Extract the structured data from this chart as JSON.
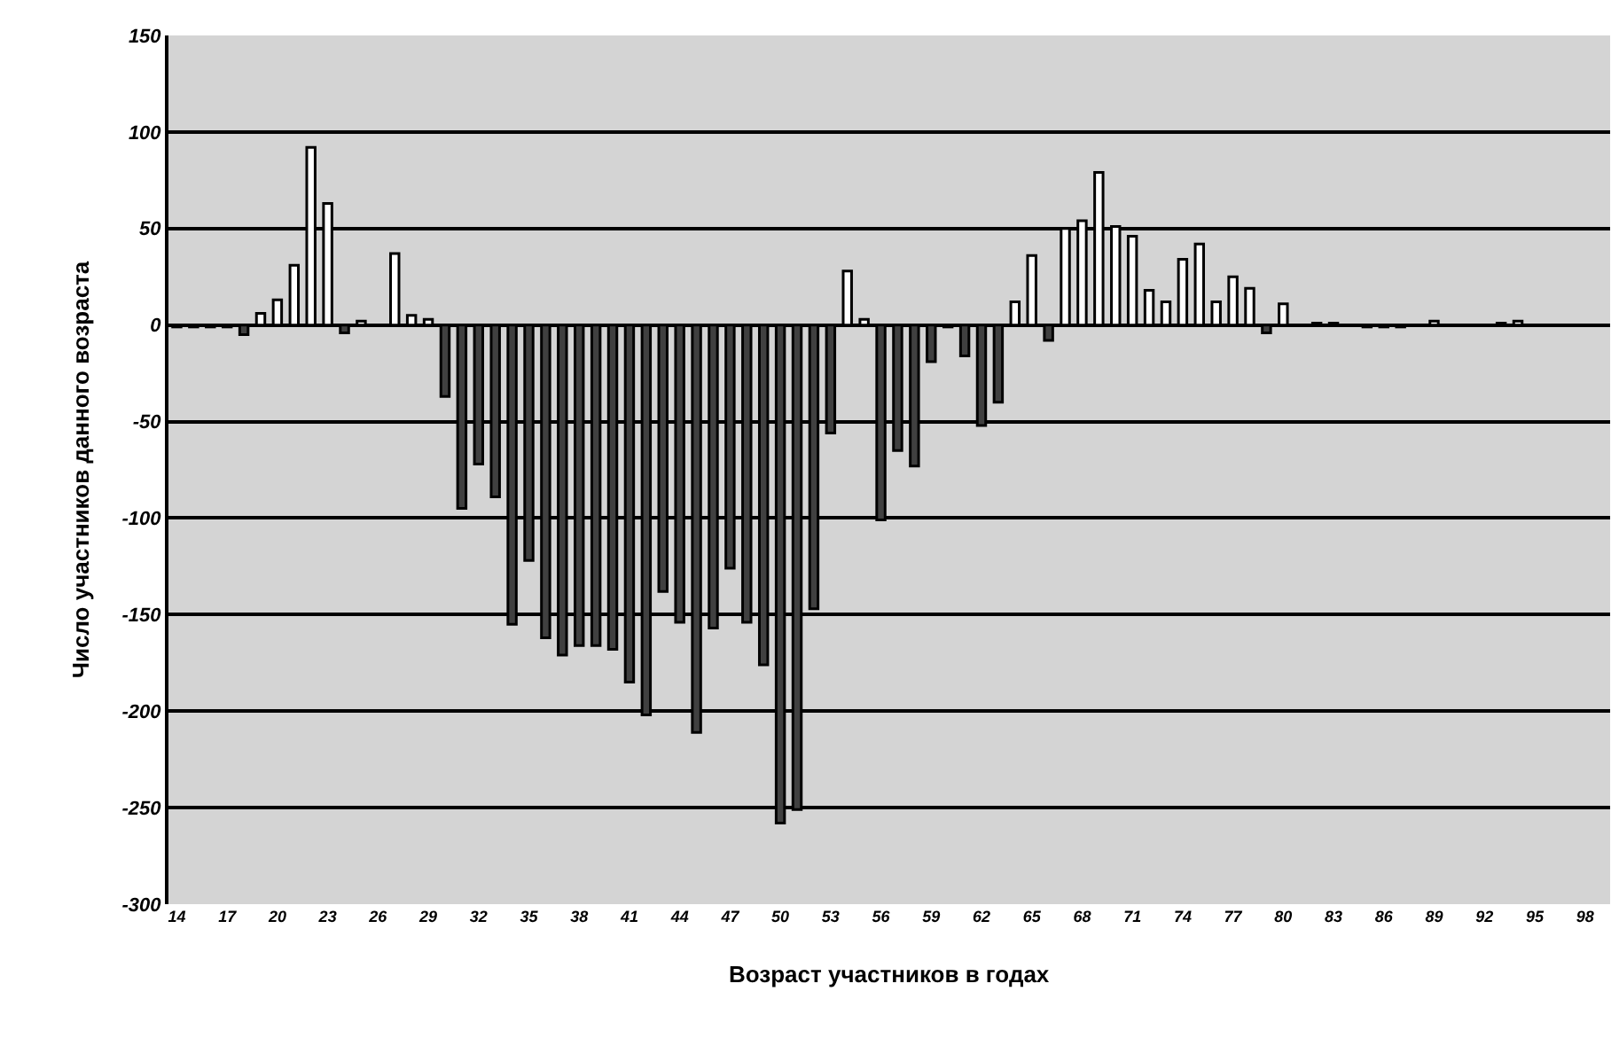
{
  "chart_data": {
    "type": "bar",
    "xlabel": "Возраст участников в годах",
    "ylabel": "Число участников данного возраста",
    "categories": [
      "14",
      null,
      null,
      "17",
      null,
      null,
      "20",
      null,
      null,
      "23",
      null,
      null,
      "26",
      null,
      null,
      "29",
      null,
      null,
      "32",
      null,
      null,
      "35",
      null,
      null,
      "38",
      null,
      null,
      "41",
      null,
      null,
      "44",
      null,
      null,
      "47",
      null,
      null,
      "50",
      null,
      null,
      "53",
      null,
      null,
      "56",
      null,
      null,
      "59",
      null,
      null,
      "62",
      null,
      null,
      "65",
      null,
      null,
      "68",
      null,
      null,
      "71",
      null,
      null,
      "74",
      null,
      null,
      "77",
      null,
      null,
      "80",
      null,
      null,
      "83",
      null,
      null,
      "86",
      null,
      null,
      "89",
      null,
      null,
      "92",
      null,
      null,
      "95",
      null,
      null,
      "98",
      null
    ],
    "values": [
      -1,
      -1,
      -1,
      -1,
      -5,
      6,
      13,
      31,
      92,
      63,
      -4,
      2,
      0,
      37,
      5,
      3,
      -37,
      -95,
      -72,
      -89,
      -155,
      -122,
      -162,
      -171,
      -166,
      -166,
      -168,
      -185,
      -202,
      -138,
      -154,
      -211,
      -157,
      -126,
      -154,
      -176,
      -258,
      -251,
      -147,
      -56,
      28,
      3,
      -101,
      -65,
      -73,
      -19,
      -1,
      -16,
      -52,
      -40,
      12,
      36,
      -8,
      50,
      54,
      79,
      51,
      46,
      18,
      12,
      34,
      42,
      12,
      25,
      19,
      -4,
      11,
      0,
      1,
      1,
      0,
      -1,
      -1,
      -1,
      0,
      2,
      0,
      0,
      0,
      1,
      2,
      0,
      0,
      0,
      0,
      0
    ],
    "colors": [
      "#404040",
      "#404040",
      "#404040",
      "#404040",
      "#404040",
      "#ffffff",
      "#ffffff",
      "#ffffff",
      "#ffffff",
      "#ffffff",
      "#404040",
      "#ffffff",
      "#ffffff",
      "#ffffff",
      "#ffffff",
      "#ffffff",
      "#404040",
      "#404040",
      "#404040",
      "#404040",
      "#404040",
      "#404040",
      "#404040",
      "#404040",
      "#404040",
      "#404040",
      "#404040",
      "#404040",
      "#404040",
      "#404040",
      "#404040",
      "#404040",
      "#404040",
      "#404040",
      "#404040",
      "#404040",
      "#404040",
      "#404040",
      "#404040",
      "#404040",
      "#ffffff",
      "#ffffff",
      "#404040",
      "#404040",
      "#404040",
      "#404040",
      "#404040",
      "#404040",
      "#404040",
      "#404040",
      "#ffffff",
      "#ffffff",
      "#404040",
      "#ffffff",
      "#ffffff",
      "#ffffff",
      "#ffffff",
      "#ffffff",
      "#ffffff",
      "#ffffff",
      "#ffffff",
      "#ffffff",
      "#ffffff",
      "#ffffff",
      "#ffffff",
      "#404040",
      "#ffffff",
      "#ffffff",
      "#ffffff",
      "#ffffff",
      "#ffffff",
      "#404040",
      "#404040",
      "#404040",
      "#ffffff",
      "#ffffff",
      "#ffffff",
      "#ffffff",
      "#ffffff",
      "#ffffff",
      "#ffffff",
      "#ffffff",
      "#ffffff",
      "#ffffff",
      "#ffffff",
      "#ffffff"
    ],
    "ylim": [
      -300,
      150
    ],
    "yticks": [
      -300,
      -250,
      -200,
      -150,
      -100,
      -50,
      0,
      50,
      100,
      150
    ],
    "grid": "y",
    "legend": false
  }
}
